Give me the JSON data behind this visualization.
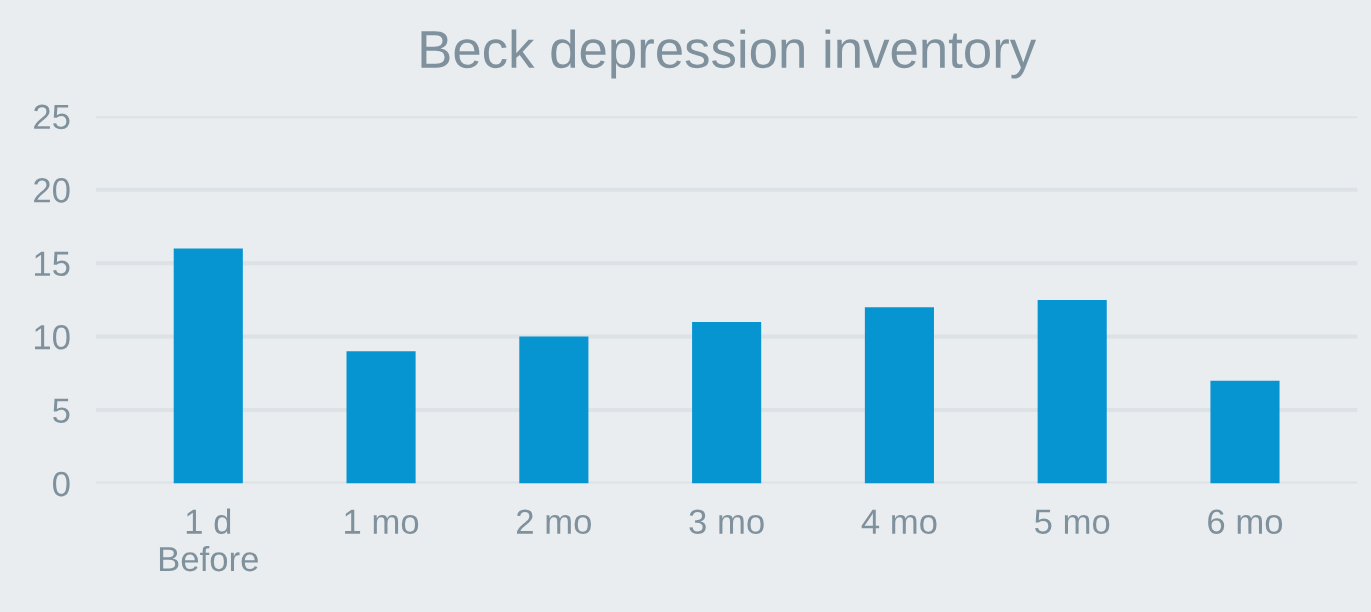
{
  "chart_data": {
    "type": "bar",
    "title": "Beck depression inventory",
    "categories": [
      "1 d\nBefore",
      "1 mo",
      "2 mo",
      "3 mo",
      "4 mo",
      "5 mo",
      "6 mo"
    ],
    "values": [
      16,
      9,
      10,
      11,
      12,
      12.5,
      7
    ],
    "color": "#0795d1",
    "ylim": [
      0,
      25
    ],
    "yticks": [
      0,
      5,
      10,
      15,
      20,
      25
    ],
    "grid": "y",
    "legend": false
  }
}
